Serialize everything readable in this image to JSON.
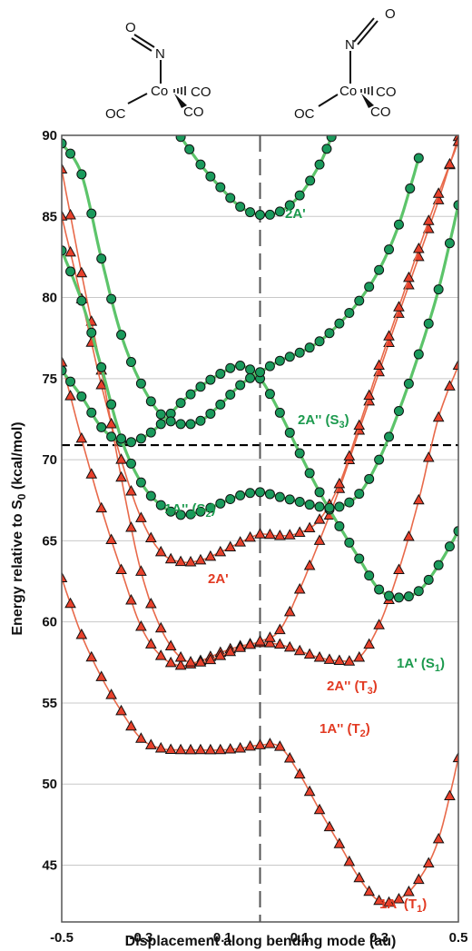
{
  "chart_data": {
    "type": "scatter",
    "title": "",
    "xlabel": "Displacement along bending mode (au)",
    "ylabel": "Energy relative to S0 (kcal/mol)",
    "ylabel_main": "Energy relative to S",
    "ylabel_sub": "0",
    "ylabel_tail": " (kcal/mol)",
    "xlim": [
      -0.5,
      0.5
    ],
    "ylim": [
      41.5,
      90
    ],
    "xticks": [
      -0.5,
      -0.3,
      -0.1,
      0.1,
      0.3,
      0.5
    ],
    "xtick_labels": [
      "-0.5",
      "-0.3",
      "-0.1",
      "0.1",
      "0.3",
      "0.5"
    ],
    "yticks": [
      45,
      50,
      55,
      60,
      65,
      70,
      75,
      80,
      85,
      90
    ],
    "ytick_labels": [
      "45",
      "50",
      "55",
      "60",
      "65",
      "70",
      "75",
      "80",
      "85",
      "90"
    ],
    "grid": "horizontal",
    "reference_lines": [
      {
        "orientation": "horizontal",
        "value": 70.9,
        "style": "dashed",
        "color": "#000000"
      },
      {
        "orientation": "vertical",
        "value": 0.0,
        "style": "dashed",
        "color": "#555555"
      }
    ],
    "colors": {
      "triplet": "#e8412c",
      "triplet_line": "#e8694a",
      "singlet": "#1a9a5c",
      "singlet_line": "#5cc46a"
    },
    "series": [
      {
        "name": "1A' (T1)",
        "label_main": "1A' (T",
        "label_sub": "1",
        "label_tail": ")",
        "color": "#e8412c",
        "marker": "triangle",
        "points": [
          [
            -0.5,
            62.7
          ],
          [
            -0.45,
            59.2
          ],
          [
            -0.4,
            56.6
          ],
          [
            -0.35,
            54.5
          ],
          [
            -0.3,
            52.8
          ],
          [
            -0.25,
            52.2
          ],
          [
            -0.2,
            52.1
          ],
          [
            -0.15,
            52.1
          ],
          [
            -0.1,
            52.1
          ],
          [
            -0.05,
            52.2
          ],
          [
            0.0,
            52.4
          ],
          [
            0.05,
            52.3
          ],
          [
            0.1,
            50.6
          ],
          [
            0.15,
            48.4
          ],
          [
            0.2,
            46.3
          ],
          [
            0.25,
            44.2
          ],
          [
            0.3,
            42.8
          ],
          [
            0.35,
            42.9
          ],
          [
            0.4,
            44.1
          ],
          [
            0.45,
            46.6
          ],
          [
            0.5,
            51.6
          ]
        ]
      },
      {
        "name": "1A'' (T2)",
        "label_main": "1A'' (T",
        "label_sub": "2",
        "label_tail": ")",
        "color": "#e8412c",
        "marker": "triangle",
        "points": [
          [
            -0.5,
            76.0
          ],
          [
            -0.45,
            71.3
          ],
          [
            -0.4,
            67.0
          ],
          [
            -0.35,
            63.2
          ],
          [
            -0.3,
            59.7
          ],
          [
            -0.25,
            57.9
          ],
          [
            -0.2,
            57.3
          ],
          [
            -0.15,
            57.6
          ],
          [
            -0.1,
            58.1
          ],
          [
            -0.05,
            58.5
          ],
          [
            0.0,
            58.7
          ],
          [
            0.05,
            58.6
          ],
          [
            0.1,
            58.2
          ],
          [
            0.15,
            57.8
          ],
          [
            0.2,
            57.6
          ],
          [
            0.25,
            57.8
          ],
          [
            0.3,
            59.8
          ],
          [
            0.35,
            63.2
          ],
          [
            0.4,
            67.5
          ],
          [
            0.45,
            72.6
          ],
          [
            0.5,
            75.8
          ]
        ]
      },
      {
        "name": "2A'' (T3)",
        "label_main": "2A'' (T",
        "label_sub": "3",
        "label_tail": ")",
        "color": "#e8412c",
        "marker": "triangle",
        "points": [
          [
            -0.5,
            87.9
          ],
          [
            -0.45,
            81.5
          ],
          [
            -0.4,
            75.5
          ],
          [
            -0.35,
            68.9
          ],
          [
            -0.3,
            63.1
          ],
          [
            -0.25,
            59.6
          ],
          [
            -0.2,
            57.8
          ],
          [
            -0.15,
            57.5
          ],
          [
            -0.1,
            57.9
          ],
          [
            -0.05,
            58.4
          ],
          [
            0.0,
            58.8
          ],
          [
            0.05,
            59.5
          ],
          [
            0.1,
            62.0
          ],
          [
            0.15,
            65.0
          ],
          [
            0.2,
            68.2
          ],
          [
            0.25,
            71.8
          ],
          [
            0.3,
            75.4
          ],
          [
            0.35,
            79.0
          ],
          [
            0.4,
            82.5
          ],
          [
            0.45,
            86.0
          ],
          [
            0.5,
            89.9
          ]
        ]
      },
      {
        "name": "2A'",
        "label_main": "2A'",
        "label_sub": "",
        "label_tail": "",
        "color": "#e8412c",
        "marker": "triangle",
        "points": [
          [
            -0.5,
            85.0
          ],
          [
            -0.45,
            79.9
          ],
          [
            -0.4,
            74.6
          ],
          [
            -0.35,
            70.0
          ],
          [
            -0.3,
            66.4
          ],
          [
            -0.25,
            64.3
          ],
          [
            -0.2,
            63.7
          ],
          [
            -0.15,
            63.8
          ],
          [
            -0.1,
            64.3
          ],
          [
            -0.05,
            64.9
          ],
          [
            0.0,
            65.4
          ],
          [
            0.05,
            65.3
          ],
          [
            0.1,
            65.5
          ],
          [
            0.15,
            66.3
          ],
          [
            0.2,
            68.5
          ],
          [
            0.25,
            72.1
          ],
          [
            0.3,
            75.8
          ],
          [
            0.35,
            79.4
          ],
          [
            0.4,
            83.0
          ],
          [
            0.45,
            86.4
          ],
          [
            0.5,
            89.6
          ]
        ]
      },
      {
        "name": "1A' (S1)",
        "label_main": "1A' (S",
        "label_sub": "1",
        "label_tail": ")",
        "color": "#1a9a5c",
        "marker": "circle",
        "points": [
          [
            -0.5,
            75.5
          ],
          [
            -0.45,
            73.9
          ],
          [
            -0.4,
            72.0
          ],
          [
            -0.35,
            71.1
          ],
          [
            -0.3,
            71.3
          ],
          [
            -0.25,
            72.2
          ],
          [
            -0.2,
            73.5
          ],
          [
            -0.15,
            74.5
          ],
          [
            -0.1,
            75.3
          ],
          [
            -0.05,
            75.8
          ],
          [
            0.0,
            75.0
          ],
          [
            0.05,
            72.9
          ],
          [
            0.1,
            70.4
          ],
          [
            0.15,
            68.0
          ],
          [
            0.2,
            65.9
          ],
          [
            0.25,
            63.9
          ],
          [
            0.3,
            62.0
          ],
          [
            0.35,
            61.5
          ],
          [
            0.4,
            61.9
          ],
          [
            0.45,
            63.5
          ],
          [
            0.5,
            65.6
          ]
        ]
      },
      {
        "name": "1A'' (S2)",
        "label_main": "1A'' (S",
        "label_sub": "2",
        "label_tail": ")",
        "color": "#1a9a5c",
        "marker": "circle",
        "points": [
          [
            -0.5,
            82.9
          ],
          [
            -0.45,
            79.8
          ],
          [
            -0.4,
            75.7
          ],
          [
            -0.35,
            71.3
          ],
          [
            -0.3,
            68.6
          ],
          [
            -0.25,
            67.2
          ],
          [
            -0.2,
            66.6
          ],
          [
            -0.15,
            66.8
          ],
          [
            -0.1,
            67.3
          ],
          [
            -0.05,
            67.8
          ],
          [
            0.0,
            68.0
          ],
          [
            0.05,
            67.7
          ],
          [
            0.1,
            67.4
          ],
          [
            0.15,
            67.1
          ],
          [
            0.2,
            67.1
          ],
          [
            0.25,
            67.9
          ],
          [
            0.3,
            70.0
          ],
          [
            0.35,
            73.0
          ],
          [
            0.4,
            76.5
          ],
          [
            0.45,
            80.5
          ],
          [
            0.5,
            85.7
          ]
        ]
      },
      {
        "name": "2A'' (S3)",
        "label_main": "2A'' (S",
        "label_sub": "3",
        "label_tail": ")",
        "color": "#1a9a5c",
        "marker": "circle",
        "points": [
          [
            -0.5,
            89.5
          ],
          [
            -0.45,
            87.6
          ],
          [
            -0.4,
            82.4
          ],
          [
            -0.35,
            77.7
          ],
          [
            -0.3,
            74.7
          ],
          [
            -0.25,
            72.8
          ],
          [
            -0.2,
            72.2
          ],
          [
            -0.15,
            72.4
          ],
          [
            -0.1,
            73.4
          ],
          [
            -0.05,
            74.6
          ],
          [
            0.0,
            75.4
          ],
          [
            0.05,
            76.1
          ],
          [
            0.1,
            76.6
          ],
          [
            0.15,
            77.3
          ],
          [
            0.2,
            78.4
          ],
          [
            0.25,
            79.8
          ],
          [
            0.3,
            81.7
          ],
          [
            0.35,
            84.5
          ],
          [
            0.4,
            88.6
          ]
        ]
      },
      {
        "name": "2A'",
        "label_main": "2A'",
        "label_sub": "",
        "label_tail": "",
        "color": "#1a9a5c",
        "marker": "circle",
        "points": [
          [
            -0.2,
            89.9
          ],
          [
            -0.15,
            88.2
          ],
          [
            -0.1,
            86.8
          ],
          [
            -0.05,
            85.6
          ],
          [
            0.0,
            85.1
          ],
          [
            0.05,
            85.3
          ],
          [
            0.1,
            86.3
          ],
          [
            0.15,
            88.2
          ],
          [
            0.18,
            89.9
          ]
        ]
      }
    ]
  },
  "structures": {
    "left": {
      "nitrosyl_n": "N",
      "nitrosyl_o": "O",
      "metal": "Co",
      "ligand_left": "OC",
      "ligand_right": "CO",
      "ligand_bottom": "CO"
    },
    "right": {
      "nitrosyl_n": "N",
      "nitrosyl_o": "O",
      "metal": "Co",
      "ligand_left": "OC",
      "ligand_right": "CO",
      "ligand_bottom": "CO"
    }
  }
}
